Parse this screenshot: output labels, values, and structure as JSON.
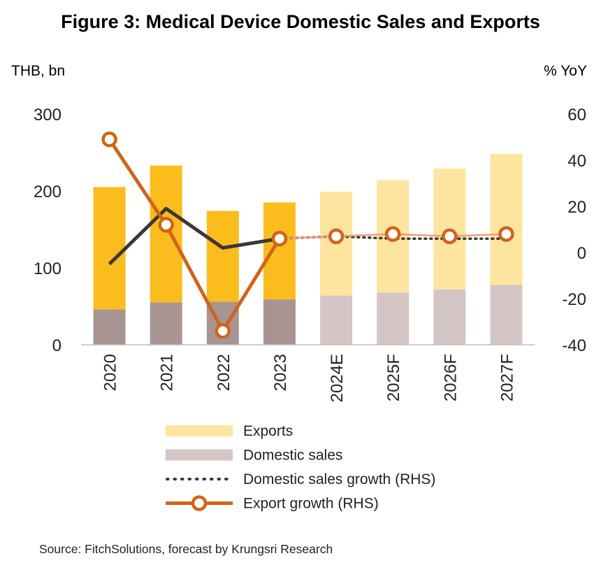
{
  "chart_data": {
    "type": "bar",
    "title": "Figure 3:  Medical Device Domestic Sales and Exports",
    "ylabel_left": "THB, bn",
    "ylabel_right": "% YoY",
    "ylim_left": [
      0,
      300
    ],
    "yticks_left": [
      "0",
      "100",
      "200",
      "300"
    ],
    "ylim_right": [
      -40,
      60
    ],
    "yticks_right": [
      "-40",
      "-20",
      "0",
      "20",
      "40",
      "60"
    ],
    "categories": [
      "2020",
      "2021",
      "2022",
      "2023",
      "2024E",
      "2025F",
      "2026F",
      "2027F"
    ],
    "forecast_start_index": 4,
    "stacked": true,
    "series": [
      {
        "name": "Domestic sales",
        "kind": "bar",
        "axis": "left",
        "values": [
          46,
          55,
          56,
          59,
          64,
          68,
          72,
          78
        ],
        "color_actual": "#a89593",
        "color_forecast": "#d4c6c5"
      },
      {
        "name": "Exports",
        "kind": "bar",
        "axis": "left",
        "values": [
          159,
          178,
          118,
          126,
          135,
          146,
          157,
          170
        ],
        "color_actual": "#fbbc1e",
        "color_forecast": "#fde49f"
      },
      {
        "name": "Domestic sales growth (RHS)",
        "kind": "line",
        "axis": "right",
        "values": [
          -5,
          19,
          2,
          6,
          7,
          6,
          6,
          6
        ],
        "color_actual": "#3e3535",
        "color_forecast": "#3e3535"
      },
      {
        "name": "Export growth (RHS)",
        "kind": "line",
        "axis": "right",
        "values": [
          49,
          12,
          -34,
          6,
          7,
          8,
          7,
          8
        ],
        "color_actual": "#d0641a",
        "color_forecast": "#e7a07a"
      }
    ],
    "legend": [
      {
        "label": "Exports",
        "symbol": "box",
        "color": "#fde49f"
      },
      {
        "label": "Domestic sales",
        "symbol": "box",
        "color": "#d4c6c5"
      },
      {
        "label": "Domestic sales growth (RHS)",
        "symbol": "dots",
        "color": "#3e3535"
      },
      {
        "label": "Export growth (RHS)",
        "symbol": "line-marker",
        "color": "#d0641a"
      }
    ],
    "legend_position": "bottom",
    "grid": false
  },
  "source": "Source: FitchSolutions, forecast by Krungsri Research"
}
